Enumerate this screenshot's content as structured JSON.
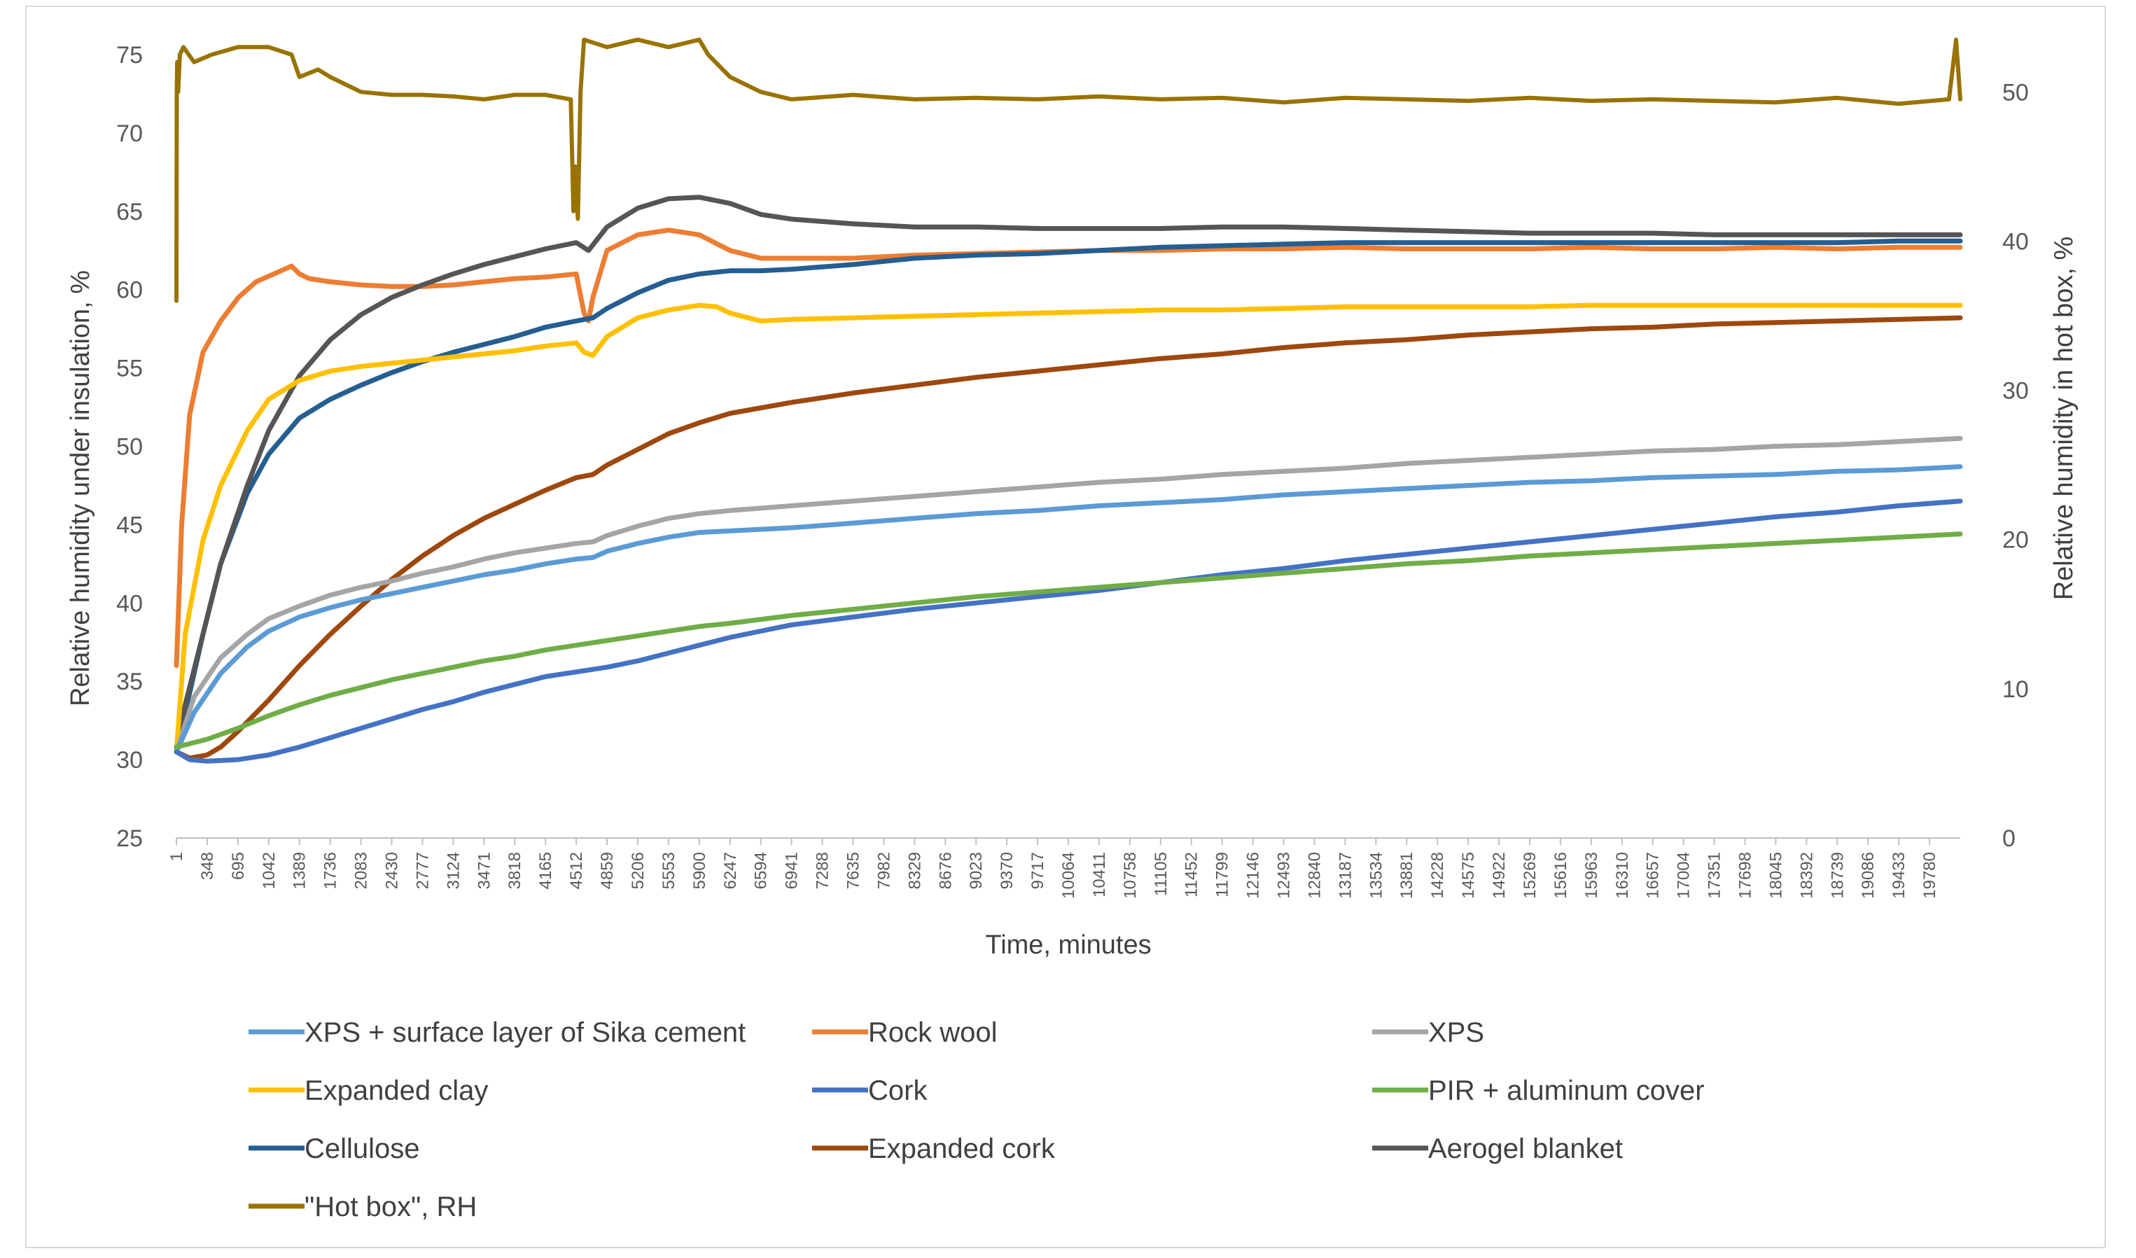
{
  "chart_data": {
    "type": "line",
    "title": "",
    "xlabel": "Time, minutes",
    "ylabel": "Relative humidity under insulation, %",
    "ylabel_right": "Relative humidity in hot box, %",
    "ylim": [
      25,
      75
    ],
    "yticks": [
      25,
      30,
      35,
      40,
      45,
      50,
      55,
      60,
      65,
      70,
      75
    ],
    "ylim_right": [
      0,
      52.5
    ],
    "yticks_right": [
      0,
      10,
      20,
      30,
      40,
      50
    ],
    "xlim": [
      1,
      20127
    ],
    "xticks": [
      1,
      348,
      695,
      1042,
      1389,
      1736,
      2083,
      2430,
      2777,
      3124,
      3471,
      3818,
      4165,
      4512,
      4859,
      5206,
      5553,
      5900,
      6247,
      6594,
      6941,
      7288,
      7635,
      7982,
      8329,
      8676,
      9023,
      9370,
      9717,
      10064,
      10411,
      10758,
      11105,
      11452,
      11799,
      12146,
      12493,
      12840,
      13187,
      13534,
      13881,
      14228,
      14575,
      14922,
      15269,
      15616,
      15963,
      16310,
      16657,
      17004,
      17351,
      17698,
      18045,
      18392,
      18739,
      19086,
      19433,
      19780
    ],
    "grid": false,
    "legend_position": "bottom",
    "series": [
      {
        "name": "XPS + surface layer of Sika cement",
        "color": "#5b9bd5",
        "axis": "left",
        "x": [
          1,
          200,
          500,
          800,
          1042,
          1389,
          1736,
          2083,
          2430,
          2777,
          3124,
          3471,
          3818,
          4165,
          4512,
          4700,
          4859,
          5206,
          5553,
          5900,
          6247,
          6941,
          7635,
          8329,
          9023,
          9717,
          10411,
          11105,
          11799,
          12493,
          13187,
          13881,
          14575,
          15269,
          15963,
          16657,
          17351,
          18045,
          18739,
          19433,
          20127
        ],
        "values": [
          30.5,
          33.0,
          35.5,
          37.2,
          38.2,
          39.1,
          39.7,
          40.2,
          40.6,
          41.0,
          41.4,
          41.8,
          42.1,
          42.5,
          42.8,
          42.9,
          43.3,
          43.8,
          44.2,
          44.5,
          44.6,
          44.8,
          45.1,
          45.4,
          45.7,
          45.9,
          46.2,
          46.4,
          46.6,
          46.9,
          47.1,
          47.3,
          47.5,
          47.7,
          47.8,
          48.0,
          48.1,
          48.2,
          48.4,
          48.5,
          48.7
        ]
      },
      {
        "name": "Rock wool",
        "color": "#ed7d31",
        "axis": "left",
        "x": [
          1,
          60,
          150,
          300,
          500,
          700,
          900,
          1100,
          1300,
          1389,
          1500,
          1736,
          2083,
          2430,
          2777,
          3124,
          3471,
          3818,
          4165,
          4512,
          4600,
          4650,
          4700,
          4859,
          5206,
          5553,
          5900,
          6247,
          6594,
          6941,
          7635,
          8329,
          9023,
          9717,
          10411,
          11105,
          11799,
          12493,
          13187,
          13881,
          14575,
          15269,
          15963,
          16657,
          17351,
          18045,
          18739,
          19433,
          20127
        ],
        "values": [
          36.0,
          45.0,
          52.0,
          56.0,
          58.0,
          59.5,
          60.5,
          61.0,
          61.5,
          61.0,
          60.7,
          60.5,
          60.3,
          60.2,
          60.2,
          60.3,
          60.5,
          60.7,
          60.8,
          61.0,
          58.5,
          58.0,
          59.5,
          62.5,
          63.5,
          63.8,
          63.5,
          62.5,
          62.0,
          62.0,
          62.0,
          62.2,
          62.3,
          62.4,
          62.5,
          62.5,
          62.6,
          62.6,
          62.7,
          62.6,
          62.6,
          62.6,
          62.7,
          62.6,
          62.6,
          62.7,
          62.6,
          62.7,
          62.7
        ]
      },
      {
        "name": "XPS",
        "color": "#a5a5a5",
        "axis": "left",
        "x": [
          1,
          200,
          500,
          800,
          1042,
          1389,
          1736,
          2083,
          2430,
          2777,
          3124,
          3471,
          3818,
          4165,
          4512,
          4700,
          4859,
          5206,
          5553,
          5900,
          6247,
          6941,
          7635,
          8329,
          9023,
          9717,
          10411,
          11105,
          11799,
          12493,
          13187,
          13881,
          14575,
          15269,
          15963,
          16657,
          17351,
          18045,
          18739,
          19433,
          20127
        ],
        "values": [
          30.5,
          34.0,
          36.5,
          38.0,
          39.0,
          39.8,
          40.5,
          41.0,
          41.4,
          41.9,
          42.3,
          42.8,
          43.2,
          43.5,
          43.8,
          43.9,
          44.3,
          44.9,
          45.4,
          45.7,
          45.9,
          46.2,
          46.5,
          46.8,
          47.1,
          47.4,
          47.7,
          47.9,
          48.2,
          48.4,
          48.6,
          48.9,
          49.1,
          49.3,
          49.5,
          49.7,
          49.8,
          50.0,
          50.1,
          50.3,
          50.5
        ]
      },
      {
        "name": "Expanded clay",
        "color": "#ffc000",
        "axis": "left",
        "x": [
          1,
          100,
          300,
          500,
          800,
          1042,
          1389,
          1736,
          2083,
          2430,
          2777,
          3124,
          3471,
          3818,
          4165,
          4512,
          4600,
          4700,
          4859,
          5206,
          5553,
          5900,
          6100,
          6247,
          6594,
          6941,
          7635,
          8329,
          9023,
          9717,
          10411,
          11105,
          11799,
          12493,
          13187,
          13881,
          14575,
          15269,
          15963,
          16657,
          17351,
          18045,
          18739,
          19433,
          20127
        ],
        "values": [
          30.5,
          38.0,
          44.0,
          47.5,
          51.0,
          53.0,
          54.2,
          54.8,
          55.1,
          55.3,
          55.5,
          55.7,
          55.9,
          56.1,
          56.4,
          56.6,
          56.0,
          55.8,
          57.0,
          58.2,
          58.7,
          59.0,
          58.9,
          58.5,
          58.0,
          58.1,
          58.2,
          58.3,
          58.4,
          58.5,
          58.6,
          58.7,
          58.7,
          58.8,
          58.9,
          58.9,
          58.9,
          58.9,
          59.0,
          59.0,
          59.0,
          59.0,
          59.0,
          59.0,
          59.0
        ]
      },
      {
        "name": "Cork",
        "color": "#4472c4",
        "axis": "left",
        "x": [
          1,
          150,
          348,
          695,
          1042,
          1389,
          1736,
          2083,
          2430,
          2777,
          3124,
          3471,
          3818,
          4165,
          4512,
          4859,
          5206,
          5553,
          5900,
          6247,
          6941,
          7635,
          8329,
          9023,
          9717,
          10411,
          11105,
          11799,
          12493,
          13187,
          13881,
          14575,
          15269,
          15963,
          16657,
          17351,
          18045,
          18739,
          19433,
          20127
        ],
        "values": [
          30.5,
          30.0,
          29.9,
          30.0,
          30.3,
          30.8,
          31.4,
          32.0,
          32.6,
          33.2,
          33.7,
          34.3,
          34.8,
          35.3,
          35.6,
          35.9,
          36.3,
          36.8,
          37.3,
          37.8,
          38.6,
          39.1,
          39.6,
          40.0,
          40.4,
          40.8,
          41.3,
          41.8,
          42.2,
          42.7,
          43.1,
          43.5,
          43.9,
          44.3,
          44.7,
          45.1,
          45.5,
          45.8,
          46.2,
          46.5
        ]
      },
      {
        "name": "PIR + aluminum cover",
        "color": "#70ad47",
        "axis": "left",
        "x": [
          1,
          348,
          695,
          1042,
          1389,
          1736,
          2083,
          2430,
          2777,
          3124,
          3471,
          3818,
          4165,
          4512,
          4859,
          5206,
          5553,
          5900,
          6247,
          6941,
          7635,
          8329,
          9023,
          9717,
          10411,
          11105,
          11799,
          12493,
          13187,
          13881,
          14575,
          15269,
          15963,
          16657,
          17351,
          18045,
          18739,
          19433,
          20127
        ],
        "values": [
          30.8,
          31.3,
          32.0,
          32.8,
          33.5,
          34.1,
          34.6,
          35.1,
          35.5,
          35.9,
          36.3,
          36.6,
          37.0,
          37.3,
          37.6,
          37.9,
          38.2,
          38.5,
          38.7,
          39.2,
          39.6,
          40.0,
          40.4,
          40.7,
          41.0,
          41.3,
          41.6,
          41.9,
          42.2,
          42.5,
          42.7,
          43.0,
          43.2,
          43.4,
          43.6,
          43.8,
          44.0,
          44.2,
          44.4
        ]
      },
      {
        "name": "Cellulose",
        "color": "#255e91",
        "axis": "left",
        "x": [
          1,
          100,
          300,
          500,
          800,
          1042,
          1389,
          1736,
          2083,
          2430,
          2777,
          3124,
          3471,
          3818,
          4165,
          4512,
          4700,
          4859,
          5206,
          5553,
          5900,
          6247,
          6594,
          6941,
          7635,
          8329,
          9023,
          9717,
          10411,
          11105,
          11799,
          12493,
          13187,
          13881,
          14575,
          15269,
          15963,
          16657,
          17351,
          18045,
          18739,
          19433,
          20127
        ],
        "values": [
          30.5,
          33.0,
          38.0,
          42.5,
          47.0,
          49.5,
          51.8,
          53.0,
          53.9,
          54.7,
          55.4,
          56.0,
          56.5,
          57.0,
          57.6,
          58.0,
          58.2,
          58.8,
          59.8,
          60.6,
          61.0,
          61.2,
          61.2,
          61.3,
          61.6,
          62.0,
          62.2,
          62.3,
          62.5,
          62.7,
          62.8,
          62.9,
          63.0,
          63.0,
          63.0,
          63.0,
          63.0,
          63.0,
          63.0,
          63.0,
          63.0,
          63.1,
          63.1
        ]
      },
      {
        "name": "Expanded cork",
        "color": "#9e480e",
        "axis": "left",
        "x": [
          1,
          150,
          348,
          500,
          695,
          1042,
          1389,
          1736,
          2083,
          2430,
          2777,
          3124,
          3471,
          3818,
          4165,
          4512,
          4700,
          4859,
          5206,
          5553,
          5900,
          6247,
          6941,
          7635,
          8329,
          9023,
          9717,
          10411,
          11105,
          11799,
          12493,
          13187,
          13881,
          14575,
          15269,
          15963,
          16657,
          17351,
          18045,
          18739,
          19433,
          20127
        ],
        "values": [
          30.5,
          30.1,
          30.3,
          30.8,
          31.8,
          33.8,
          36.0,
          38.0,
          39.8,
          41.5,
          43.0,
          44.3,
          45.4,
          46.3,
          47.2,
          48.0,
          48.2,
          48.8,
          49.8,
          50.8,
          51.5,
          52.1,
          52.8,
          53.4,
          53.9,
          54.4,
          54.8,
          55.2,
          55.6,
          55.9,
          56.3,
          56.6,
          56.8,
          57.1,
          57.3,
          57.5,
          57.6,
          57.8,
          57.9,
          58.0,
          58.1,
          58.2
        ]
      },
      {
        "name": "Aerogel blanket",
        "color": "#555555",
        "axis": "left",
        "x": [
          1,
          100,
          300,
          500,
          800,
          1042,
          1389,
          1736,
          2083,
          2430,
          2777,
          3124,
          3471,
          3818,
          4165,
          4512,
          4650,
          4859,
          5206,
          5553,
          5900,
          6247,
          6594,
          6941,
          7635,
          8329,
          9023,
          9717,
          10411,
          11105,
          11799,
          12493,
          13187,
          13881,
          14575,
          15269,
          15963,
          16657,
          17351,
          18045,
          18739,
          19433,
          20127
        ],
        "values": [
          30.8,
          33.5,
          38.0,
          42.5,
          47.5,
          51.0,
          54.5,
          56.8,
          58.4,
          59.5,
          60.3,
          61.0,
          61.6,
          62.1,
          62.6,
          63.0,
          62.5,
          64.0,
          65.2,
          65.8,
          65.9,
          65.5,
          64.8,
          64.5,
          64.2,
          64.0,
          64.0,
          63.9,
          63.9,
          63.9,
          64.0,
          64.0,
          63.9,
          63.8,
          63.7,
          63.6,
          63.6,
          63.6,
          63.5,
          63.5,
          63.5,
          63.5,
          63.5
        ]
      },
      {
        "name": "\"Hot box\", RH",
        "color": "#997300",
        "axis": "right",
        "x": [
          1,
          5,
          10,
          20,
          40,
          80,
          200,
          400,
          695,
          1042,
          1300,
          1389,
          1600,
          1736,
          2083,
          2430,
          2777,
          3124,
          3471,
          3818,
          4165,
          4450,
          4480,
          4500,
          4530,
          4560,
          4600,
          4859,
          5206,
          5553,
          5900,
          6000,
          6247,
          6594,
          6941,
          7635,
          8329,
          9023,
          9717,
          10411,
          11105,
          11799,
          12493,
          13187,
          13881,
          14575,
          15269,
          15963,
          16657,
          17351,
          18045,
          18739,
          19433,
          20000,
          20080,
          20127
        ],
        "values": [
          36.0,
          50.0,
          52.0,
          50.0,
          52.5,
          53.0,
          52.0,
          52.5,
          53.0,
          53.0,
          52.5,
          51.0,
          51.5,
          51.0,
          50.0,
          49.8,
          49.8,
          49.7,
          49.5,
          49.8,
          49.8,
          49.5,
          42.0,
          45.0,
          41.5,
          50.0,
          53.5,
          53.0,
          53.5,
          53.0,
          53.5,
          52.5,
          51.0,
          50.0,
          49.5,
          49.8,
          49.5,
          49.6,
          49.5,
          49.7,
          49.5,
          49.6,
          49.3,
          49.6,
          49.5,
          49.4,
          49.6,
          49.4,
          49.5,
          49.4,
          49.3,
          49.6,
          49.2,
          49.5,
          53.5,
          49.5
        ]
      }
    ]
  }
}
